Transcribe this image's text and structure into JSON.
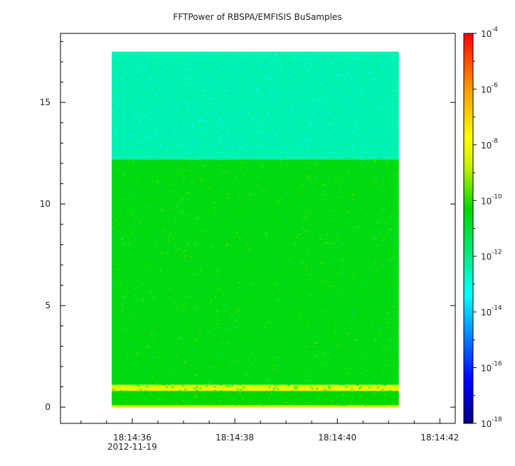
{
  "chart_data": {
    "type": "heatmap",
    "title": "FFTPower of RBSPA/EMFISIS  BuSamples",
    "xlabel": "",
    "ylabel": "",
    "x_ticks": [
      "18:14:36",
      "18:14:38",
      "18:14:40",
      "18:14:42"
    ],
    "x_date_label": "2012-11-19",
    "x_range": [
      "18:14:34.6",
      "18:14:42.3"
    ],
    "y_ticks": [
      0,
      5,
      10,
      15
    ],
    "ylim": [
      -0.8,
      18.4
    ],
    "data_extent": {
      "x": [
        "18:14:35.6",
        "18:14:41.2"
      ],
      "y": [
        0,
        17.5
      ]
    },
    "colorbar": {
      "scale": "log",
      "range": [
        1e-18,
        0.0001
      ],
      "ticks": [
        {
          "value": 0.0001,
          "base": "10",
          "exp": "-4"
        },
        {
          "value": 1e-06,
          "base": "10",
          "exp": "-6"
        },
        {
          "value": 1e-08,
          "base": "10",
          "exp": "-8"
        },
        {
          "value": 1e-10,
          "base": "10",
          "exp": "-10"
        },
        {
          "value": 1e-12,
          "base": "10",
          "exp": "-12"
        },
        {
          "value": 1e-14,
          "base": "10",
          "exp": "-14"
        },
        {
          "value": 1e-16,
          "base": "10",
          "exp": "-16"
        },
        {
          "value": 1e-18,
          "base": "10",
          "exp": "-18"
        }
      ]
    },
    "bands": [
      {
        "y_from": 12.2,
        "y_to": 17.5,
        "typical_log10_power": -12.5
      },
      {
        "y_from": 1.1,
        "y_to": 12.2,
        "typical_log10_power": -10.5
      },
      {
        "y_from": 0.8,
        "y_to": 1.1,
        "typical_log10_power": -8.3
      },
      {
        "y_from": 0.0,
        "y_to": 0.8,
        "typical_log10_power": -10.3
      },
      {
        "y_from": 0.0,
        "y_to": 0.1,
        "typical_log10_power": -8.5
      }
    ]
  }
}
